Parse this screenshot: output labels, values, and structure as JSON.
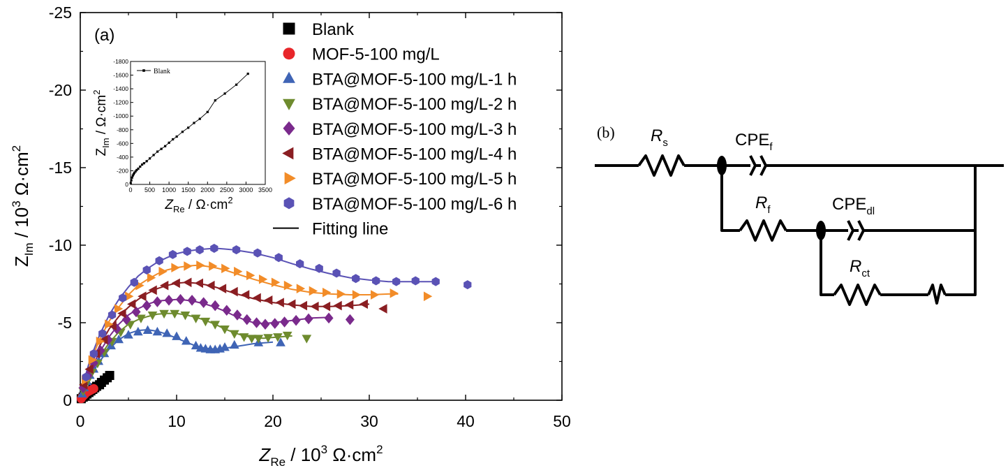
{
  "panel_a_label": "(a)",
  "panel_b_label": "(b)",
  "chart_data": [
    {
      "type": "scatter",
      "xlabel": {
        "var": "Z",
        "sub": "Re",
        "unit": " / 10",
        "exp": "3",
        "tail": " Ω·cm",
        "exp2": "2"
      },
      "ylabel": {
        "var": "Z",
        "sub": "Im",
        "unit": " / 10",
        "exp": "3",
        "tail": " Ω·cm",
        "exp2": "2"
      },
      "xlim": [
        0,
        50
      ],
      "ylim": [
        0,
        -25
      ],
      "x_ticks": [
        "0",
        "10",
        "20",
        "30",
        "40",
        "50"
      ],
      "y_ticks": [
        "0",
        "-5",
        "-10",
        "-15",
        "-20",
        "-25"
      ],
      "legend_position": "top-right",
      "series": [
        {
          "name": "Blank",
          "marker": "square",
          "color": "#000000",
          "x": [
            0.1,
            0.3,
            0.5,
            0.7,
            0.9,
            1.1,
            1.3,
            1.5,
            1.7,
            2.0,
            2.2,
            2.5,
            2.8,
            3.05
          ],
          "y": [
            -0.1,
            -0.2,
            -0.3,
            -0.4,
            -0.5,
            -0.6,
            -0.7,
            -0.8,
            -0.9,
            -1.0,
            -1.15,
            -1.3,
            -1.45,
            -1.6
          ]
        },
        {
          "name": "MOF-5-100 mg/L",
          "marker": "circle",
          "color": "#e8262a",
          "x": [
            0.1,
            0.2,
            0.35,
            0.5,
            0.65,
            0.8,
            0.95,
            1.1,
            1.25,
            1.4
          ],
          "y": [
            -0.1,
            -0.2,
            -0.3,
            -0.4,
            -0.5,
            -0.55,
            -0.6,
            -0.65,
            -0.7,
            -0.75
          ]
        },
        {
          "name": "BTA@MOF-5-100 mg/L-1 h",
          "marker": "triangle-up",
          "color": "#3f64b5",
          "x": [
            0.2,
            0.4,
            0.7,
            1.0,
            1.4,
            1.9,
            2.5,
            3.2,
            4.0,
            5.0,
            6.0,
            7.0,
            8.0,
            9.0,
            10.0,
            11.0,
            12.0,
            12.5,
            13.0,
            13.5,
            14.0,
            14.5,
            15.0,
            16.0,
            18.5,
            20.8
          ],
          "y": [
            -0.4,
            -0.8,
            -1.2,
            -1.6,
            -2.0,
            -2.5,
            -3.0,
            -3.5,
            -3.9,
            -4.2,
            -4.4,
            -4.5,
            -4.4,
            -4.3,
            -4.1,
            -3.8,
            -3.5,
            -3.35,
            -3.3,
            -3.25,
            -3.25,
            -3.3,
            -3.4,
            -3.55,
            -3.7,
            -3.7
          ]
        },
        {
          "name": "BTA@MOF-5-100 mg/L-2 h",
          "marker": "triangle-down",
          "color": "#6e8b2e",
          "x": [
            0.3,
            0.7,
            1.2,
            1.8,
            2.5,
            3.3,
            4.2,
            5.2,
            6.3,
            7.5,
            8.7,
            9.8,
            10.9,
            12.0,
            13.0,
            14.0,
            15.0,
            16.0,
            17.0,
            17.8,
            18.5,
            19.5,
            20.5,
            21.5,
            23.5
          ],
          "y": [
            -0.6,
            -1.2,
            -1.8,
            -2.4,
            -3.1,
            -3.8,
            -4.4,
            -4.9,
            -5.3,
            -5.5,
            -5.6,
            -5.6,
            -5.5,
            -5.3,
            -5.1,
            -4.9,
            -4.6,
            -4.3,
            -4.1,
            -4.0,
            -4.0,
            -4.05,
            -4.1,
            -4.2,
            -4.0
          ]
        },
        {
          "name": "BTA@MOF-5-100 mg/L-3 h",
          "marker": "diamond",
          "color": "#7a2a8c",
          "x": [
            0.3,
            0.8,
            1.4,
            2.1,
            2.9,
            3.8,
            4.8,
            5.8,
            6.9,
            8.0,
            9.2,
            10.4,
            11.6,
            12.8,
            14.0,
            15.2,
            16.3,
            17.3,
            18.3,
            19.2,
            20.2,
            21.2,
            22.4,
            23.7,
            25.8,
            28.0
          ],
          "y": [
            -0.8,
            -1.6,
            -2.4,
            -3.2,
            -3.9,
            -4.6,
            -5.2,
            -5.7,
            -6.1,
            -6.35,
            -6.45,
            -6.5,
            -6.45,
            -6.3,
            -6.1,
            -5.8,
            -5.5,
            -5.2,
            -5.0,
            -4.9,
            -4.95,
            -5.05,
            -5.15,
            -5.25,
            -5.3,
            -5.2
          ]
        },
        {
          "name": "BTA@MOF-5-100 mg/L-4 h",
          "marker": "triangle-left",
          "color": "#8a1e22",
          "x": [
            0.4,
            1.0,
            1.7,
            2.5,
            3.4,
            4.4,
            5.4,
            6.5,
            7.6,
            8.8,
            10.0,
            11.2,
            12.4,
            13.6,
            14.8,
            16.0,
            17.2,
            18.4,
            19.6,
            20.8,
            22.0,
            23.2,
            24.4,
            25.6,
            26.8,
            28.0,
            29.5,
            31.5
          ],
          "y": [
            -1.0,
            -2.0,
            -3.0,
            -3.9,
            -4.8,
            -5.6,
            -6.2,
            -6.7,
            -7.1,
            -7.4,
            -7.55,
            -7.6,
            -7.55,
            -7.4,
            -7.2,
            -7.0,
            -6.8,
            -6.6,
            -6.45,
            -6.3,
            -6.2,
            -6.1,
            -6.05,
            -6.05,
            -6.1,
            -6.15,
            -6.2,
            -5.9
          ]
        },
        {
          "name": "BTA@MOF-5-100 mg/L-5 h",
          "marker": "triangle-right",
          "color": "#f28c28",
          "x": [
            0.5,
            1.2,
            2.0,
            2.9,
            3.9,
            5.0,
            6.1,
            7.3,
            8.5,
            9.8,
            11.1,
            12.4,
            13.7,
            15.0,
            16.3,
            17.6,
            18.9,
            20.2,
            21.5,
            22.8,
            24.1,
            25.5,
            27.0,
            28.6,
            30.5,
            32.5,
            36.0
          ],
          "y": [
            -1.3,
            -2.6,
            -3.8,
            -4.9,
            -5.9,
            -6.7,
            -7.4,
            -7.9,
            -8.3,
            -8.55,
            -8.65,
            -8.7,
            -8.65,
            -8.5,
            -8.3,
            -8.05,
            -7.8,
            -7.6,
            -7.4,
            -7.2,
            -7.05,
            -6.95,
            -6.85,
            -6.8,
            -6.8,
            -6.9,
            -6.7
          ]
        },
        {
          "name": "BTA@MOF-5-100 mg/L-6 h",
          "marker": "hexagon",
          "color": "#5a52b5",
          "x": [
            0.6,
            1.4,
            2.3,
            3.3,
            4.4,
            5.6,
            6.9,
            8.2,
            9.6,
            11.1,
            12.4,
            13.9,
            16.2,
            18.4,
            20.6,
            22.8,
            24.8,
            26.6,
            28.6,
            30.7,
            32.8,
            34.8,
            36.9,
            40.2
          ],
          "y": [
            -1.5,
            -3.0,
            -4.3,
            -5.5,
            -6.6,
            -7.6,
            -8.4,
            -9.0,
            -9.4,
            -9.6,
            -9.7,
            -9.8,
            -9.7,
            -9.5,
            -9.2,
            -8.8,
            -8.5,
            -8.2,
            -7.85,
            -7.7,
            -7.65,
            -7.7,
            -7.65,
            -7.45
          ]
        },
        {
          "name": "Fitting line",
          "marker": "line",
          "color": "#000000"
        }
      ],
      "fit_lines": [
        {
          "color": "#3f64b5",
          "x": [
            0,
            0.5,
            1,
            2,
            3,
            4,
            5,
            6,
            7,
            8,
            9,
            10,
            11,
            12,
            13,
            14,
            15,
            16,
            17,
            18,
            19,
            20
          ],
          "y": [
            0,
            -0.9,
            -1.5,
            -2.5,
            -3.3,
            -3.9,
            -4.3,
            -4.5,
            -4.55,
            -4.45,
            -4.25,
            -4.0,
            -3.75,
            -3.5,
            -3.35,
            -3.3,
            -3.35,
            -3.45,
            -3.55,
            -3.65,
            -3.7,
            -3.75
          ]
        },
        {
          "color": "#6e8b2e",
          "x": [
            0,
            0.5,
            1,
            2,
            3,
            4,
            5,
            6,
            7,
            8,
            9,
            10,
            11,
            12,
            13,
            14,
            15,
            16,
            17,
            18,
            19,
            20,
            21,
            22
          ],
          "y": [
            0,
            -1.0,
            -1.7,
            -2.8,
            -3.7,
            -4.4,
            -4.9,
            -5.2,
            -5.4,
            -5.55,
            -5.6,
            -5.6,
            -5.5,
            -5.35,
            -5.15,
            -4.9,
            -4.6,
            -4.35,
            -4.15,
            -4.05,
            -4.0,
            -4.05,
            -4.1,
            -4.15
          ]
        },
        {
          "color": "#7a2a8c",
          "x": [
            0,
            0.5,
            1,
            2,
            3,
            4,
            5,
            6,
            7,
            8,
            9,
            10,
            11,
            12,
            13,
            14,
            15,
            16,
            17,
            18,
            19,
            20,
            22,
            24,
            26
          ],
          "y": [
            0,
            -1.1,
            -1.9,
            -3.1,
            -4.1,
            -4.9,
            -5.5,
            -5.9,
            -6.2,
            -6.4,
            -6.45,
            -6.5,
            -6.45,
            -6.35,
            -6.2,
            -6.0,
            -5.75,
            -5.45,
            -5.2,
            -5.0,
            -4.95,
            -5.0,
            -5.15,
            -5.3,
            -5.35
          ]
        },
        {
          "color": "#8a1e22",
          "x": [
            0,
            0.5,
            1,
            2,
            3,
            4,
            5,
            6,
            7,
            8,
            9,
            10,
            11,
            12,
            13,
            14,
            15,
            16,
            18,
            20,
            22,
            24,
            26,
            28,
            30
          ],
          "y": [
            0,
            -1.2,
            -2.1,
            -3.5,
            -4.6,
            -5.4,
            -6.0,
            -6.5,
            -6.9,
            -7.2,
            -7.4,
            -7.55,
            -7.6,
            -7.55,
            -7.45,
            -7.3,
            -7.1,
            -6.9,
            -6.55,
            -6.3,
            -6.15,
            -6.05,
            -6.05,
            -6.1,
            -6.2
          ]
        },
        {
          "color": "#f28c28",
          "x": [
            0,
            0.5,
            1,
            2,
            3,
            4,
            5,
            6,
            7,
            8,
            9,
            10,
            11,
            12,
            13,
            14,
            15,
            16,
            18,
            20,
            22,
            24,
            26,
            28,
            30,
            32,
            33
          ],
          "y": [
            0,
            -1.4,
            -2.4,
            -3.9,
            -5.1,
            -6.0,
            -6.8,
            -7.4,
            -7.8,
            -8.15,
            -8.4,
            -8.55,
            -8.65,
            -8.7,
            -8.65,
            -8.55,
            -8.4,
            -8.2,
            -7.8,
            -7.45,
            -7.15,
            -6.95,
            -6.85,
            -6.8,
            -6.8,
            -6.85,
            -6.85
          ]
        },
        {
          "color": "#5a52b5",
          "x": [
            0,
            0.5,
            1,
            2,
            3,
            4,
            5,
            6,
            7,
            8,
            9,
            10,
            11,
            12,
            13,
            14,
            15,
            16,
            18,
            20,
            22,
            24,
            26,
            28,
            30,
            32,
            34,
            36,
            37
          ],
          "y": [
            0,
            -1.5,
            -2.6,
            -4.2,
            -5.5,
            -6.5,
            -7.3,
            -8.0,
            -8.5,
            -8.9,
            -9.2,
            -9.45,
            -9.6,
            -9.7,
            -9.75,
            -9.8,
            -9.75,
            -9.7,
            -9.5,
            -9.2,
            -8.8,
            -8.45,
            -8.15,
            -7.9,
            -7.75,
            -7.65,
            -7.65,
            -7.65,
            -7.65
          ]
        }
      ]
    },
    {
      "type": "line",
      "xlabel": {
        "var": "Z",
        "sub": "Re",
        "tail": " / Ω·cm",
        "exp": "2"
      },
      "ylabel": {
        "var": "Z",
        "sub": "Im",
        "tail": " / Ω·cm",
        "exp": "2"
      },
      "xlim": [
        0,
        3500
      ],
      "ylim": [
        0,
        -1800
      ],
      "x_ticks": [
        "0",
        "500",
        "1000",
        "1500",
        "2000",
        "2500",
        "3000",
        "3500"
      ],
      "y_ticks": [
        "0",
        "-200",
        "-400",
        "-600",
        "-800",
        "-1000",
        "-1200",
        "-1400",
        "-1600",
        "-1800"
      ],
      "series": [
        {
          "name": "Blank",
          "marker": "square",
          "color": "#000000",
          "x": [
            5,
            20,
            40,
            60,
            80,
            100,
            130,
            160,
            200,
            250,
            300,
            350,
            420,
            500,
            600,
            700,
            800,
            900,
            1000,
            1100,
            1200,
            1350,
            1500,
            1650,
            1800,
            2000,
            2200,
            2450,
            2750,
            3050
          ],
          "y": [
            -20,
            -60,
            -100,
            -130,
            -150,
            -170,
            -190,
            -210,
            -230,
            -260,
            -290,
            -310,
            -340,
            -380,
            -430,
            -480,
            -520,
            -560,
            -610,
            -660,
            -700,
            -770,
            -830,
            -900,
            -960,
            -1060,
            -1230,
            -1330,
            -1460,
            -1620
          ]
        }
      ]
    }
  ],
  "circuit": {
    "Rs": {
      "main": "R",
      "sub": "s"
    },
    "CPEf": {
      "main": "CPE",
      "sub": "f"
    },
    "Rf": {
      "main": "R",
      "sub": "f"
    },
    "CPEdl": {
      "main": "CPE",
      "sub": "dl"
    },
    "Rct": {
      "main": "R",
      "sub": "ct"
    }
  }
}
